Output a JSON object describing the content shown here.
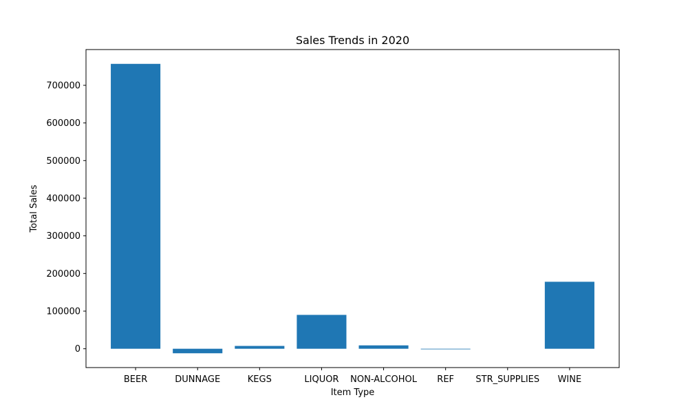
{
  "chart_data": {
    "type": "bar",
    "title": "Sales Trends in 2020",
    "xlabel": "Item Type",
    "ylabel": "Total Sales",
    "categories": [
      "BEER",
      "DUNNAGE",
      "KEGS",
      "LIQUOR",
      "NON-ALCOHOL",
      "REF",
      "STR_SUPPLIES",
      "WINE"
    ],
    "values": [
      757000,
      -12000,
      7500,
      90000,
      9000,
      -1500,
      0,
      178000
    ],
    "ylim": [
      -50000,
      795000
    ],
    "yticks": [
      0,
      100000,
      200000,
      300000,
      400000,
      500000,
      600000,
      700000
    ],
    "ytick_labels": [
      "0",
      "100000",
      "200000",
      "300000",
      "400000",
      "500000",
      "600000",
      "700000"
    ],
    "bar_color": "#1f77b4",
    "grid": false,
    "legend": "none"
  }
}
